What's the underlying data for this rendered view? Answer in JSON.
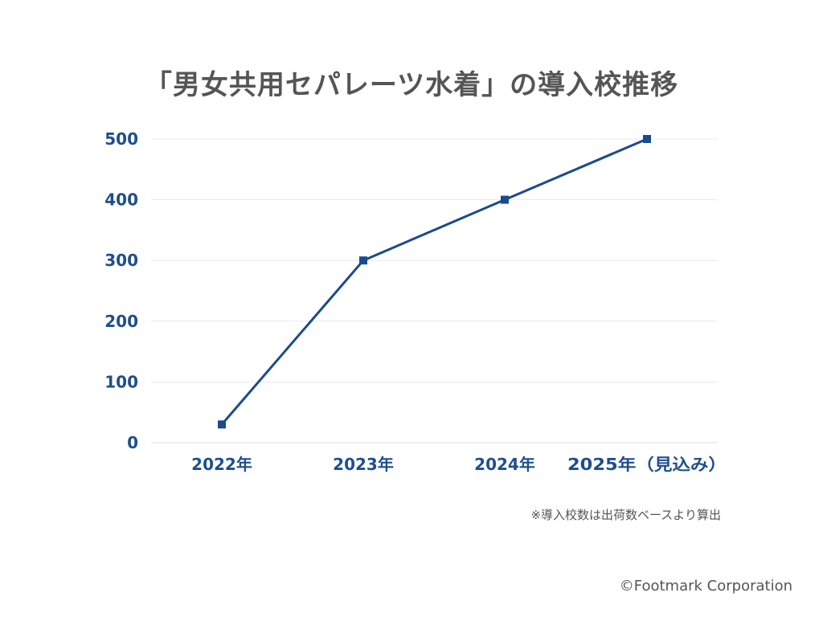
{
  "chart_data": {
    "type": "line",
    "title": "「男女共用セパレーツ水着」の導入校推移",
    "categories": [
      "2022年",
      "2023年",
      "2024年",
      "2025年（見込み）"
    ],
    "series": [
      {
        "values": [
          30,
          300,
          400,
          500
        ]
      }
    ],
    "ylim": [
      0,
      500
    ],
    "yticks": [
      "0",
      "100",
      "200",
      "300",
      "400",
      "500"
    ],
    "xlabel": "",
    "ylabel": "",
    "grid": true,
    "colors": {
      "line": "#1a4b8c",
      "marker": "#1a4b8c",
      "ticks": "#1f4e8c",
      "grid": "#e8e8e8"
    }
  },
  "footnote": "※導入校数は出荷数ベースより算出",
  "copyright": "©Footmark Corporation"
}
